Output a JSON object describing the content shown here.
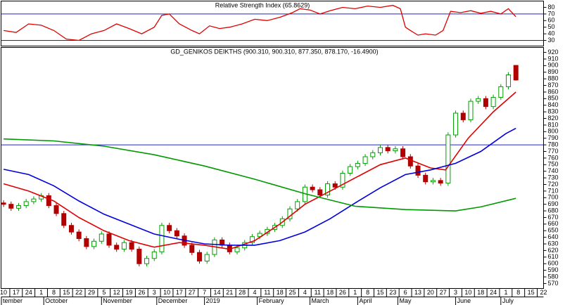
{
  "chart_data": [
    {
      "type": "line",
      "title": "Relative Strength Index (65.8629)",
      "x": [
        0,
        5,
        10,
        15,
        20,
        25,
        30,
        35,
        40,
        45,
        50,
        55,
        60,
        63,
        66,
        70,
        75,
        78,
        82,
        86,
        90,
        95,
        100,
        105,
        110,
        115,
        118,
        122,
        126,
        130,
        135,
        140,
        145,
        150,
        155,
        158,
        160,
        162,
        165,
        168,
        172,
        175,
        178,
        182,
        186,
        190,
        194,
        198,
        201,
        204
      ],
      "series": [
        {
          "color": "#e00000",
          "values": [
            45,
            42,
            55,
            53,
            45,
            32,
            30,
            40,
            45,
            55,
            48,
            40,
            50,
            68,
            70,
            55,
            45,
            40,
            52,
            48,
            50,
            55,
            62,
            60,
            65,
            72,
            78,
            76,
            70,
            75,
            80,
            78,
            82,
            80,
            83,
            78,
            50,
            45,
            38,
            40,
            38,
            45,
            74,
            72,
            75,
            71,
            74,
            70,
            78,
            65.8629
          ]
        }
      ],
      "xlim": [
        -1,
        215
      ],
      "ylim": [
        21,
        89
      ],
      "yticks": [
        30,
        40,
        50,
        60,
        70,
        80
      ],
      "hlines": [
        70,
        30
      ],
      "hline_color": "#2020d0"
    },
    {
      "type": "candlestick",
      "title": "GD_GENIKOS DEIKTHS (900.310, 900.310, 877.350, 878.170, -16.4900)",
      "x": [
        0,
        3,
        6,
        9,
        12,
        15,
        18,
        21,
        24,
        27,
        30,
        33,
        36,
        39,
        42,
        45,
        48,
        51,
        54,
        57,
        60,
        63,
        66,
        69,
        72,
        75,
        78,
        81,
        84,
        87,
        90,
        93,
        96,
        99,
        102,
        105,
        108,
        111,
        114,
        117,
        120,
        123,
        126,
        129,
        132,
        135,
        138,
        141,
        144,
        147,
        150,
        153,
        156,
        159,
        162,
        165,
        168,
        171,
        174,
        177,
        180,
        183,
        186,
        189,
        192,
        195,
        198,
        201,
        204
      ],
      "open": [
        692,
        690,
        684,
        688,
        694,
        698,
        703,
        688,
        676,
        658,
        648,
        638,
        626,
        634,
        645,
        628,
        622,
        632,
        622,
        600,
        608,
        618,
        658,
        650,
        642,
        628,
        617,
        604,
        614,
        636,
        628,
        618,
        624,
        632,
        641,
        646,
        652,
        658,
        668,
        683,
        694,
        716,
        712,
        704,
        721,
        716,
        737,
        747,
        752,
        762,
        768,
        776,
        771,
        774,
        762,
        748,
        734,
        724,
        726,
        722,
        795,
        828,
        818,
        846,
        850,
        838,
        852,
        868,
        900.31
      ],
      "high": [
        696,
        694,
        692,
        698,
        702,
        707,
        707,
        692,
        680,
        662,
        652,
        642,
        638,
        649,
        649,
        632,
        636,
        636,
        626,
        612,
        622,
        662,
        662,
        654,
        646,
        632,
        621,
        618,
        640,
        640,
        632,
        628,
        636,
        645,
        650,
        656,
        662,
        672,
        687,
        698,
        720,
        720,
        716,
        725,
        725,
        741,
        751,
        756,
        766,
        772,
        780,
        780,
        778,
        778,
        766,
        752,
        738,
        730,
        730,
        799,
        832,
        832,
        850,
        854,
        854,
        856,
        872,
        890,
        900.31
      ],
      "low": [
        686,
        680,
        680,
        684,
        690,
        694,
        684,
        672,
        654,
        644,
        634,
        622,
        622,
        630,
        624,
        618,
        618,
        618,
        596,
        596,
        604,
        614,
        646,
        638,
        624,
        613,
        600,
        600,
        610,
        624,
        614,
        614,
        620,
        628,
        637,
        642,
        648,
        654,
        664,
        679,
        690,
        708,
        700,
        700,
        712,
        712,
        733,
        743,
        748,
        758,
        764,
        767,
        767,
        758,
        744,
        730,
        720,
        720,
        718,
        718,
        791,
        814,
        814,
        842,
        834,
        834,
        848,
        864,
        877.35
      ],
      "close": [
        690,
        684,
        688,
        694,
        698,
        703,
        688,
        676,
        658,
        648,
        638,
        626,
        634,
        645,
        628,
        622,
        632,
        622,
        600,
        608,
        618,
        658,
        650,
        642,
        628,
        617,
        604,
        614,
        636,
        628,
        618,
        624,
        632,
        641,
        646,
        652,
        658,
        668,
        683,
        694,
        716,
        712,
        704,
        721,
        716,
        737,
        747,
        752,
        762,
        768,
        776,
        771,
        774,
        762,
        748,
        734,
        724,
        726,
        722,
        795,
        828,
        818,
        846,
        850,
        838,
        852,
        868,
        886,
        878.17
      ],
      "up_color": "#00a000",
      "down_color": "#b00000",
      "overlays": [
        {
          "color": "#e00000",
          "x": [
            0,
            10,
            20,
            30,
            40,
            50,
            60,
            70,
            80,
            90,
            100,
            110,
            120,
            130,
            140,
            150,
            160,
            170,
            176,
            185,
            195,
            204
          ],
          "values": [
            721,
            710,
            695,
            670,
            650,
            635,
            625,
            632,
            628,
            622,
            635,
            660,
            690,
            710,
            730,
            750,
            760,
            745,
            742,
            790,
            830,
            860
          ]
        },
        {
          "color": "#0000dd",
          "x": [
            0,
            10,
            20,
            30,
            40,
            50,
            60,
            70,
            80,
            90,
            100,
            110,
            120,
            130,
            140,
            150,
            160,
            170,
            180,
            190,
            200,
            204
          ],
          "values": [
            743,
            735,
            718,
            695,
            675,
            660,
            645,
            637,
            630,
            628,
            628,
            635,
            648,
            668,
            692,
            715,
            735,
            742,
            752,
            770,
            797,
            805
          ]
        },
        {
          "color": "#009900",
          "x": [
            0,
            20,
            40,
            60,
            80,
            100,
            120,
            140,
            160,
            180,
            190,
            204
          ],
          "values": [
            789,
            786,
            778,
            765,
            748,
            728,
            706,
            687,
            682,
            680,
            686,
            699
          ]
        }
      ],
      "hlines": [
        780
      ],
      "hline_color": "#2020d0",
      "xlim": [
        -1,
        215
      ],
      "ylim": [
        563,
        927
      ],
      "yticks": [
        570,
        580,
        590,
        600,
        610,
        620,
        630,
        640,
        650,
        660,
        670,
        680,
        690,
        700,
        710,
        720,
        730,
        740,
        750,
        760,
        770,
        780,
        790,
        800,
        810,
        820,
        830,
        840,
        850,
        860,
        870,
        880,
        890,
        900,
        910,
        920
      ],
      "xticks": [
        {
          "value": 0,
          "label": "10"
        },
        {
          "value": 5,
          "label": "17"
        },
        {
          "value": 10,
          "label": "24"
        },
        {
          "value": 15,
          "label": "1"
        },
        {
          "value": 20,
          "label": "8"
        },
        {
          "value": 25,
          "label": "15"
        },
        {
          "value": 30,
          "label": "22"
        },
        {
          "value": 35,
          "label": "29"
        },
        {
          "value": 40,
          "label": "5"
        },
        {
          "value": 45,
          "label": "12"
        },
        {
          "value": 50,
          "label": "19"
        },
        {
          "value": 55,
          "label": "26"
        },
        {
          "value": 60,
          "label": "3"
        },
        {
          "value": 65,
          "label": "10"
        },
        {
          "value": 70,
          "label": "17"
        },
        {
          "value": 75,
          "label": "27"
        },
        {
          "value": 80,
          "label": "7"
        },
        {
          "value": 85,
          "label": "14"
        },
        {
          "value": 90,
          "label": "21"
        },
        {
          "value": 95,
          "label": "28"
        },
        {
          "value": 100,
          "label": "4"
        },
        {
          "value": 105,
          "label": "11"
        },
        {
          "value": 110,
          "label": "18"
        },
        {
          "value": 115,
          "label": "25"
        },
        {
          "value": 120,
          "label": "4"
        },
        {
          "value": 125,
          "label": "11"
        },
        {
          "value": 130,
          "label": "18"
        },
        {
          "value": 135,
          "label": "26"
        },
        {
          "value": 140,
          "label": "1"
        },
        {
          "value": 145,
          "label": "8"
        },
        {
          "value": 150,
          "label": "15"
        },
        {
          "value": 155,
          "label": "23"
        },
        {
          "value": 160,
          "label": "6"
        },
        {
          "value": 165,
          "label": "13"
        },
        {
          "value": 170,
          "label": "20"
        },
        {
          "value": 175,
          "label": "27"
        },
        {
          "value": 180,
          "label": "3"
        },
        {
          "value": 185,
          "label": "10"
        },
        {
          "value": 190,
          "label": "18"
        },
        {
          "value": 195,
          "label": "24"
        },
        {
          "value": 200,
          "label": "1"
        },
        {
          "value": 205,
          "label": "8"
        },
        {
          "value": 210,
          "label": "15"
        },
        {
          "value": 215,
          "label": "22"
        }
      ],
      "month_labels": [
        {
          "value": -1,
          "label": "tember"
        },
        {
          "value": 16,
          "label": "October"
        },
        {
          "value": 39,
          "label": "November"
        },
        {
          "value": 61,
          "label": "December"
        },
        {
          "value": 80,
          "label": "2019"
        },
        {
          "value": 101,
          "label": "February"
        },
        {
          "value": 122,
          "label": "March"
        },
        {
          "value": 141,
          "label": "April"
        },
        {
          "value": 157,
          "label": "May"
        },
        {
          "value": 180,
          "label": "June"
        },
        {
          "value": 198,
          "label": "July"
        }
      ]
    }
  ]
}
